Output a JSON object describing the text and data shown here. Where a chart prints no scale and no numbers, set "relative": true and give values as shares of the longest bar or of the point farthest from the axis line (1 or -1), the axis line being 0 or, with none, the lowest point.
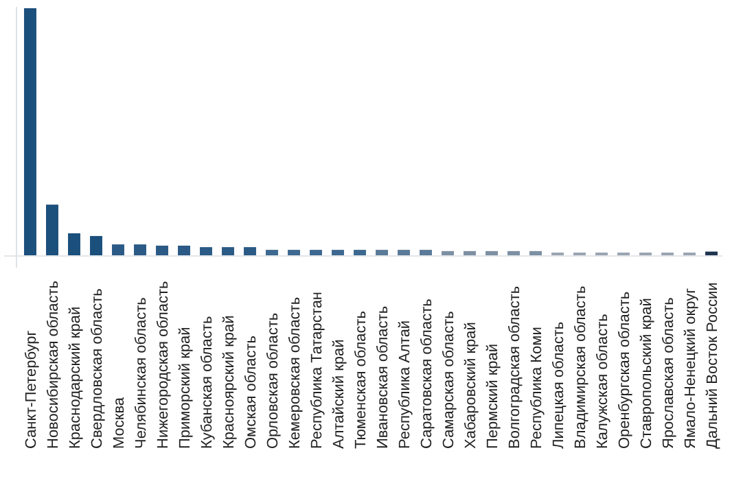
{
  "chart_data": {
    "type": "bar",
    "relative": true,
    "categories": [
      "Санкт-Петербург",
      "Новосибирская область",
      "Краснодарский край",
      "Свердловская область",
      "Москва",
      "Челябинская область",
      "Нижегородская область",
      "Приморский край",
      "Кубанская область",
      "Красноярский край",
      "Омская область",
      "Орловская область",
      "Кемеровская область",
      "Республика Татарстан",
      "Алтайский край",
      "Тюменская область",
      "Ивановская область",
      "Республика Алтай",
      "Саратовская область",
      "Самарская область",
      "Хабаровский край",
      "Пермский край",
      "Волгоградская область",
      "Республика Коми",
      "Липецкая область",
      "Владимирская область",
      "Калужская область",
      "Оренбургская область",
      "Ставропольский край",
      "Ярославская область",
      "Ямало-Ненецкий округ",
      "Дальний Восток России"
    ],
    "values": [
      1,
      0.205,
      0.089,
      0.078,
      0.044,
      0.044,
      0.039,
      0.039,
      0.033,
      0.033,
      0.033,
      0.022,
      0.022,
      0.022,
      0.022,
      0.022,
      0.022,
      0.022,
      0.022,
      0.017,
      0.017,
      0.017,
      0.017,
      0.017,
      0.011,
      0.011,
      0.011,
      0.011,
      0.011,
      0.011,
      0.011,
      0.015
    ],
    "colors": [
      "#1b4f7c",
      "#1b4f7c",
      "#1b4f7c",
      "#1b4f7c",
      "#2a5a85",
      "#2a5a85",
      "#2a5a85",
      "#2a5a85",
      "#2a5a85",
      "#2a5a85",
      "#2a5a85",
      "#3d6890",
      "#3d6890",
      "#3d6890",
      "#3d6890",
      "#3d6890",
      "#5a7a98",
      "#5a7a98",
      "#5a7a98",
      "#7d8fa3",
      "#7d8fa3",
      "#7d8fa3",
      "#7d8fa3",
      "#7d8fa3",
      "#9aa5b2",
      "#9aa5b2",
      "#9aa5b2",
      "#9aa5b2",
      "#9aa5b2",
      "#9aa5b2",
      "#9aa5b2",
      "#1e3550"
    ]
  }
}
